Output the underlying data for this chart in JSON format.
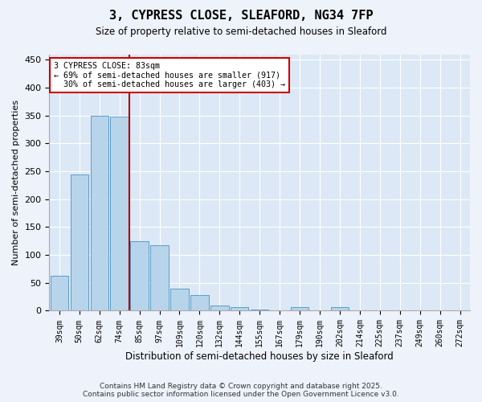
{
  "title": "3, CYPRESS CLOSE, SLEAFORD, NG34 7FP",
  "subtitle": "Size of property relative to semi-detached houses in Sleaford",
  "xlabel": "Distribution of semi-detached houses by size in Sleaford",
  "ylabel": "Number of semi-detached properties",
  "bar_labels": [
    "39sqm",
    "50sqm",
    "62sqm",
    "74sqm",
    "85sqm",
    "97sqm",
    "109sqm",
    "120sqm",
    "132sqm",
    "144sqm",
    "155sqm",
    "167sqm",
    "179sqm",
    "190sqm",
    "202sqm",
    "214sqm",
    "225sqm",
    "237sqm",
    "249sqm",
    "260sqm",
    "272sqm"
  ],
  "bar_values": [
    62,
    245,
    350,
    348,
    125,
    118,
    40,
    28,
    10,
    6,
    2,
    1,
    6,
    1,
    6,
    1,
    1,
    1,
    0,
    0,
    0
  ],
  "bar_color": "#b8d4ea",
  "bar_edgecolor": "#5a9dc8",
  "ylim": [
    0,
    460
  ],
  "yticks": [
    0,
    50,
    100,
    150,
    200,
    250,
    300,
    350,
    400,
    450
  ],
  "property_size_label": "3 CYPRESS CLOSE: 83sqm",
  "pct_smaller": 69,
  "n_smaller": 917,
  "pct_larger": 30,
  "n_larger": 403,
  "vline_color": "#aa0000",
  "annotation_box_edgecolor": "#cc0000",
  "footer1": "Contains HM Land Registry data © Crown copyright and database right 2025.",
  "footer2": "Contains public sector information licensed under the Open Government Licence v3.0.",
  "bg_color": "#eef2fb",
  "plot_bg_color": "#dce8f5",
  "grid_color": "#ffffff"
}
